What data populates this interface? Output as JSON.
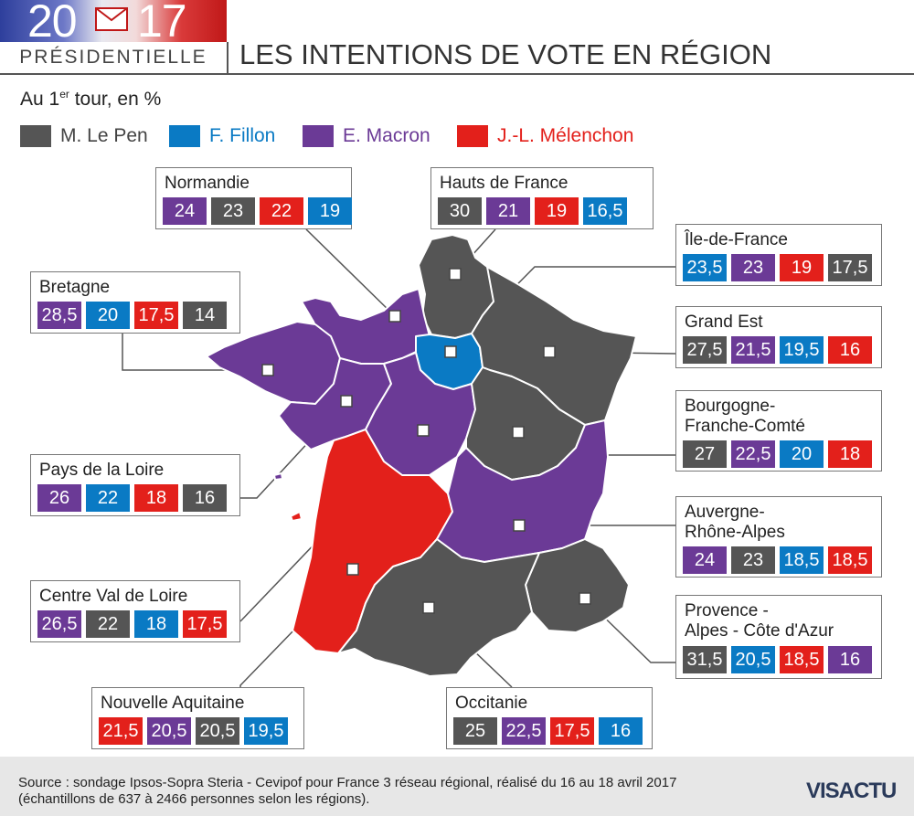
{
  "header": {
    "logo_year_left": "20",
    "logo_year_right": "17",
    "logo_label": "PRÉSIDENTIELLE",
    "title": "LES INTENTIONS DE VOTE EN RÉGION"
  },
  "subtitle": {
    "prefix": "Au 1",
    "sup": "er",
    "suffix": " tour, en %"
  },
  "colors": {
    "le_pen": "#555555",
    "fillon": "#0a7ac4",
    "macron": "#6b3a96",
    "melenchon": "#e3201b"
  },
  "legend": [
    {
      "label": "M. Le Pen",
      "color": "#555555",
      "text_color": "#444444"
    },
    {
      "label": "F. Fillon",
      "color": "#0a7ac4",
      "text_color": "#0a7ac4"
    },
    {
      "label": "E. Macron",
      "color": "#6b3a96",
      "text_color": "#6b3a96"
    },
    {
      "label": "J.-L. Mélenchon",
      "color": "#e3201b",
      "text_color": "#e3201b"
    }
  ],
  "regions": {
    "normandie": {
      "name": "Normandie",
      "winner": "macron",
      "values": [
        {
          "v": "24",
          "c": "macron"
        },
        {
          "v": "23",
          "c": "le_pen"
        },
        {
          "v": "22",
          "c": "melenchon"
        },
        {
          "v": "19",
          "c": "fillon"
        }
      ]
    },
    "hauts_de_france": {
      "name": "Hauts de France",
      "winner": "le_pen",
      "values": [
        {
          "v": "30",
          "c": "le_pen"
        },
        {
          "v": "21",
          "c": "macron"
        },
        {
          "v": "19",
          "c": "melenchon"
        },
        {
          "v": "16,5",
          "c": "fillon"
        }
      ]
    },
    "ile_de_france": {
      "name": "Île-de-France",
      "winner": "fillon",
      "values": [
        {
          "v": "23,5",
          "c": "fillon"
        },
        {
          "v": "23",
          "c": "macron"
        },
        {
          "v": "19",
          "c": "melenchon"
        },
        {
          "v": "17,5",
          "c": "le_pen"
        }
      ]
    },
    "bretagne": {
      "name": "Bretagne",
      "winner": "macron",
      "values": [
        {
          "v": "28,5",
          "c": "macron"
        },
        {
          "v": "20",
          "c": "fillon"
        },
        {
          "v": "17,5",
          "c": "melenchon"
        },
        {
          "v": "14",
          "c": "le_pen"
        }
      ]
    },
    "grand_est": {
      "name": "Grand Est",
      "winner": "le_pen",
      "values": [
        {
          "v": "27,5",
          "c": "le_pen"
        },
        {
          "v": "21,5",
          "c": "macron"
        },
        {
          "v": "19,5",
          "c": "fillon"
        },
        {
          "v": "16",
          "c": "melenchon"
        }
      ]
    },
    "bourgogne": {
      "name_line1": "Bourgogne-",
      "name_line2": "Franche-Comté",
      "winner": "le_pen",
      "values": [
        {
          "v": "27",
          "c": "le_pen"
        },
        {
          "v": "22,5",
          "c": "macron"
        },
        {
          "v": "20",
          "c": "fillon"
        },
        {
          "v": "18",
          "c": "melenchon"
        }
      ]
    },
    "pays_de_la_loire": {
      "name": "Pays de la Loire",
      "winner": "macron",
      "values": [
        {
          "v": "26",
          "c": "macron"
        },
        {
          "v": "22",
          "c": "fillon"
        },
        {
          "v": "18",
          "c": "melenchon"
        },
        {
          "v": "16",
          "c": "le_pen"
        }
      ]
    },
    "auvergne": {
      "name_line1": "Auvergne-",
      "name_line2": "Rhône-Alpes",
      "winner": "macron",
      "values": [
        {
          "v": "24",
          "c": "macron"
        },
        {
          "v": "23",
          "c": "le_pen"
        },
        {
          "v": "18,5",
          "c": "fillon"
        },
        {
          "v": "18,5",
          "c": "melenchon"
        }
      ]
    },
    "centre_val_de_loire": {
      "name": "Centre Val de Loire",
      "winner": "macron",
      "values": [
        {
          "v": "26,5",
          "c": "macron"
        },
        {
          "v": "22",
          "c": "le_pen"
        },
        {
          "v": "18",
          "c": "fillon"
        },
        {
          "v": "17,5",
          "c": "melenchon"
        }
      ]
    },
    "paca": {
      "name_line1": "Provence -",
      "name_line2": "Alpes - Côte d'Azur",
      "winner": "le_pen",
      "values": [
        {
          "v": "31,5",
          "c": "le_pen"
        },
        {
          "v": "20,5",
          "c": "fillon"
        },
        {
          "v": "18,5",
          "c": "melenchon"
        },
        {
          "v": "16",
          "c": "macron"
        }
      ]
    },
    "nouvelle_aquitaine": {
      "name": "Nouvelle Aquitaine",
      "winner": "melenchon",
      "values": [
        {
          "v": "21,5",
          "c": "melenchon"
        },
        {
          "v": "20,5",
          "c": "macron"
        },
        {
          "v": "20,5",
          "c": "le_pen"
        },
        {
          "v": "19,5",
          "c": "fillon"
        }
      ]
    },
    "occitanie": {
      "name": "Occitanie",
      "winner": "le_pen",
      "values": [
        {
          "v": "25",
          "c": "le_pen"
        },
        {
          "v": "22,5",
          "c": "macron"
        },
        {
          "v": "17,5",
          "c": "melenchon"
        },
        {
          "v": "16",
          "c": "fillon"
        }
      ]
    }
  },
  "footer": {
    "source_line1": "Source : sondage Ipsos-Sopra Steria - Cevipof pour France 3 réseau régional, réalisé du 16 au 18 avril 2017",
    "source_line2": "(échantillons de 637 à 2466 personnes selon les régions).",
    "brand": "VISACTU"
  }
}
